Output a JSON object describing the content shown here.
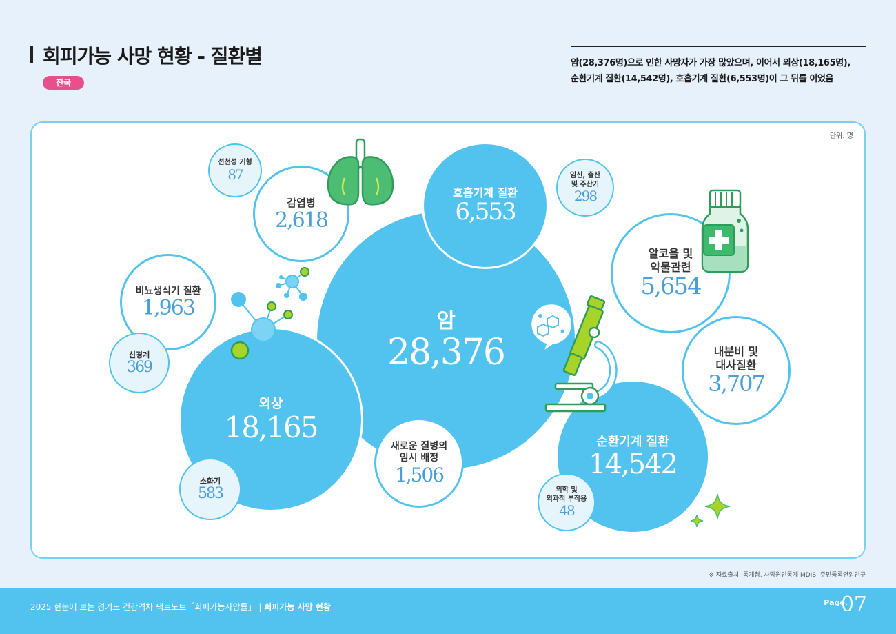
{
  "header": {
    "title": "회피가능 사망 현황 - 질환별",
    "region": "전국",
    "summary_line1": "암(28,376명)으로 인한 사망자가 가장 많았으며, 이어서 외상(18,165명),",
    "summary_line2": "순환기계 질환(14,542명), 호흡기계 질환(6,553명)이 그 뒤를 이었음"
  },
  "unit_label": "단위: 명",
  "diseases": {
    "cancer": {
      "label": "암",
      "value": "28,376"
    },
    "trauma": {
      "label": "외상",
      "value": "18,165"
    },
    "circulatory": {
      "label": "순환기계 질환",
      "value": "14,542"
    },
    "respiratory": {
      "label": "호흡기계 질환",
      "value": "6,553"
    },
    "alcohol": {
      "label_line1": "알코올 및",
      "label_line2": "약물관련",
      "value": "5,654"
    },
    "endocrine": {
      "label_line1": "내분비 및",
      "label_line2": "대사질환",
      "value": "3,707"
    },
    "infectious": {
      "label": "감염병",
      "value": "2,618"
    },
    "genitourinary": {
      "label": "비뇨생식기 질환",
      "value": "1,963"
    },
    "new_disease": {
      "label_line1": "새로운 질병의",
      "label_line2": "임시 배정",
      "value": "1,506"
    },
    "digestive": {
      "label": "소화기",
      "value": "583"
    },
    "nervous": {
      "label": "신경계",
      "value": "369"
    },
    "maternal": {
      "label_line1": "임신, 출산",
      "label_line2": "및 주산기",
      "value": "298"
    },
    "congenital": {
      "label": "선천성 기형",
      "value": "87"
    },
    "medical": {
      "label_line1": "의학 및",
      "label_line2": "외과적 부작용",
      "value": "48"
    }
  },
  "source": "※ 자료출처: 통계청, 사망원인통계 MDIS, 주민등록연앙인구",
  "footer": {
    "text": "2025 한눈에 보는 경기도 건강격차 팩트노트「회피가능사망률」 |",
    "section": "회피가능 사망 현황",
    "page_label": "Page.",
    "page_number": "07"
  },
  "colors": {
    "accent": "#52c3ef",
    "pill": "#e8508c",
    "green": "#4cbd72",
    "lime": "#a8d42a"
  }
}
